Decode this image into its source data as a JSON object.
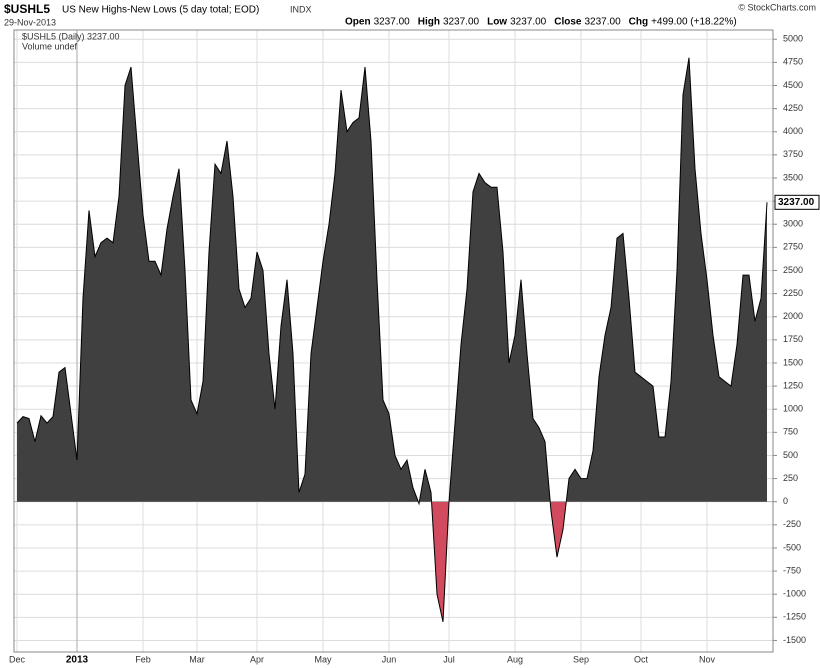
{
  "header": {
    "symbol": "$USHL5",
    "name": "US New Highs-New Lows (5 day total; EOD)",
    "exchange": "INDX",
    "date": "29-Nov-2013",
    "copyright": "© StockCharts.com",
    "quote": [
      {
        "label": "Open",
        "value": "3237.00"
      },
      {
        "label": "High",
        "value": "3237.00"
      },
      {
        "label": "Low",
        "value": "3237.00"
      },
      {
        "label": "Close",
        "value": "3237.00"
      },
      {
        "label": "Chg",
        "value": "+499.00 (+18.22%)"
      }
    ]
  },
  "chart_data": {
    "type": "area",
    "legend": "$USHL5 (Daily) 3237.00",
    "volume_note": "Volume undef",
    "last_value_label": "3237.00",
    "pos_color": "#404040",
    "neg_color": "#d24a5e",
    "grid": true,
    "ylim": [
      -1625,
      5100
    ],
    "yticks": [
      -1500,
      -1250,
      -1000,
      -750,
      -500,
      -250,
      0,
      250,
      500,
      750,
      1000,
      1250,
      1500,
      1750,
      2000,
      2250,
      2500,
      2750,
      3000,
      3250,
      3500,
      3750,
      4000,
      4250,
      4500,
      4750,
      5000
    ],
    "categories": [
      "Dec",
      null,
      null,
      null,
      null,
      null,
      null,
      null,
      null,
      null,
      "2013",
      null,
      null,
      null,
      null,
      null,
      null,
      null,
      null,
      null,
      null,
      "Feb",
      null,
      null,
      null,
      null,
      null,
      null,
      null,
      null,
      "Mar",
      null,
      null,
      null,
      null,
      null,
      null,
      null,
      null,
      null,
      "Apr",
      null,
      null,
      null,
      null,
      null,
      null,
      null,
      null,
      null,
      null,
      "May",
      null,
      null,
      null,
      null,
      null,
      null,
      null,
      null,
      null,
      null,
      "Jun",
      null,
      null,
      null,
      null,
      null,
      null,
      null,
      null,
      null,
      "Jul",
      null,
      null,
      null,
      null,
      null,
      null,
      null,
      null,
      null,
      null,
      "Aug",
      null,
      null,
      null,
      null,
      null,
      null,
      null,
      null,
      null,
      null,
      "Sep",
      null,
      null,
      null,
      null,
      null,
      null,
      null,
      null,
      null,
      "Oct",
      null,
      null,
      null,
      null,
      null,
      null,
      null,
      null,
      null,
      null,
      "Nov",
      null,
      null,
      null,
      null,
      null,
      null,
      null,
      null,
      null,
      null
    ],
    "values": [
      850,
      920,
      900,
      650,
      930,
      850,
      920,
      1400,
      1450,
      950,
      450,
      2200,
      3150,
      2650,
      2800,
      2850,
      2800,
      3300,
      4500,
      4700,
      3900,
      3100,
      2600,
      2600,
      2450,
      2950,
      3300,
      3600,
      2500,
      1100,
      950,
      1300,
      2700,
      3650,
      3550,
      3900,
      3300,
      2300,
      2100,
      2200,
      2700,
      2500,
      1600,
      1000,
      1900,
      2400,
      1600,
      100,
      300,
      1600,
      2100,
      2600,
      3000,
      3550,
      4450,
      4000,
      4100,
      4150,
      4700,
      3900,
      2400,
      1100,
      950,
      500,
      350,
      450,
      150,
      -20,
      350,
      100,
      -1000,
      -1300,
      0,
      850,
      1700,
      2300,
      3350,
      3550,
      3450,
      3400,
      3400,
      2700,
      1500,
      1800,
      2400,
      1600,
      900,
      800,
      650,
      -100,
      -600,
      -300,
      250,
      350,
      250,
      250,
      550,
      1350,
      1800,
      2100,
      2850,
      2900,
      2200,
      1400,
      1350,
      1300,
      1250,
      700,
      700,
      1300,
      2500,
      4400,
      4800,
      3600,
      2900,
      2400,
      1800,
      1350,
      1300,
      1250,
      1700,
      2450,
      2450,
      1950,
      2200,
      3237
    ]
  }
}
